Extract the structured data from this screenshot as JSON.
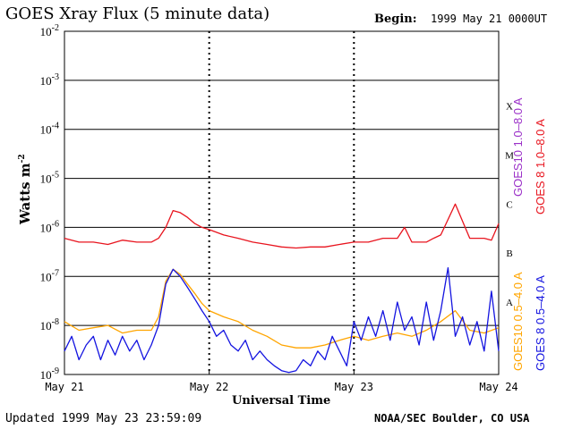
{
  "header": {
    "title": "GOES Xray Flux (5 minute data)",
    "begin_label": "Begin:",
    "begin_value": "1999 May 21 0000UT"
  },
  "footer": {
    "updated": "Updated 1999 May 23 23:59:09",
    "credit": "NOAA/SEC Boulder, CO USA"
  },
  "chart_data": {
    "type": "line",
    "title": "GOES Xray Flux (5 minute data)",
    "xlabel": "Universal Time",
    "ylabel": "Watts m",
    "ylabel_superscript": "-2",
    "y_scale": "log",
    "ylim": [
      1e-09,
      0.01
    ],
    "y_ticks": [
      {
        "base": "10",
        "exp": "-2",
        "value": 0.01
      },
      {
        "base": "10",
        "exp": "-3",
        "value": 0.001
      },
      {
        "base": "10",
        "exp": "-4",
        "value": 0.0001
      },
      {
        "base": "10",
        "exp": "-5",
        "value": 1e-05
      },
      {
        "base": "10",
        "exp": "-6",
        "value": 1e-06
      },
      {
        "base": "10",
        "exp": "-7",
        "value": 1e-07
      },
      {
        "base": "10",
        "exp": "-8",
        "value": 1e-08
      },
      {
        "base": "10",
        "exp": "-9",
        "value": 1e-09
      }
    ],
    "x_days": [
      0,
      1,
      2,
      3
    ],
    "x_ticks": [
      "May 21",
      "May 22",
      "May 23",
      "May 24"
    ],
    "flare_classes": [
      {
        "label": "X",
        "value": 0.0003
      },
      {
        "label": "M",
        "value": 3e-05
      },
      {
        "label": "C",
        "value": 3e-06
      },
      {
        "label": "B",
        "value": 3e-07
      },
      {
        "label": "A",
        "value": 3e-08
      }
    ],
    "grid": true,
    "legend": [
      {
        "name": "GOES10 1.0–8.0 A",
        "color": "#9b30c8"
      },
      {
        "name": "GOES 8 1.0–8.0 A",
        "color": "#e8141e"
      },
      {
        "name": "GOES10 0.5–4.0 A",
        "color": "#ffa500"
      },
      {
        "name": "GOES 8 0.5–4.0 A",
        "color": "#1414e0"
      }
    ],
    "series": [
      {
        "name": "GOES 8 1.0–8.0 A",
        "color": "#e8141e",
        "x": [
          0,
          0.1,
          0.2,
          0.3,
          0.4,
          0.5,
          0.6,
          0.65,
          0.7,
          0.75,
          0.8,
          0.85,
          0.9,
          0.95,
          1.0,
          1.1,
          1.2,
          1.3,
          1.4,
          1.5,
          1.6,
          1.7,
          1.8,
          1.9,
          2.0,
          2.1,
          2.2,
          2.3,
          2.35,
          2.4,
          2.5,
          2.55,
          2.6,
          2.7,
          2.8,
          2.9,
          2.95,
          3.0
        ],
        "y": [
          6e-07,
          5e-07,
          5e-07,
          4.5e-07,
          5.5e-07,
          5e-07,
          5e-07,
          6e-07,
          1e-06,
          2.2e-06,
          2e-06,
          1.6e-06,
          1.2e-06,
          1e-06,
          9e-07,
          7e-07,
          6e-07,
          5e-07,
          4.5e-07,
          4e-07,
          3.8e-07,
          4e-07,
          4e-07,
          4.5e-07,
          5e-07,
          5e-07,
          6e-07,
          6e-07,
          1e-06,
          5e-07,
          5e-07,
          6e-07,
          7e-07,
          3e-06,
          6e-07,
          6e-07,
          5.5e-07,
          1.2e-06
        ]
      },
      {
        "name": "GOES10 0.5–4.0 A",
        "color": "#ffa500",
        "x": [
          0,
          0.1,
          0.2,
          0.3,
          0.4,
          0.5,
          0.6,
          0.65,
          0.7,
          0.75,
          0.8,
          0.85,
          0.9,
          0.95,
          1.0,
          1.1,
          1.2,
          1.3,
          1.4,
          1.5,
          1.6,
          1.7,
          1.8,
          1.9,
          2.0,
          2.1,
          2.2,
          2.3,
          2.4,
          2.5,
          2.6,
          2.7,
          2.8,
          2.9,
          3.0
        ],
        "y": [
          1.2e-08,
          8e-09,
          9e-09,
          1e-08,
          7e-09,
          8e-09,
          8e-09,
          1.5e-08,
          8e-08,
          1.4e-07,
          1.1e-07,
          7e-08,
          4.5e-08,
          2.8e-08,
          2e-08,
          1.5e-08,
          1.2e-08,
          8e-09,
          6e-09,
          4e-09,
          3.5e-09,
          3.5e-09,
          4e-09,
          5e-09,
          6e-09,
          5e-09,
          6e-09,
          7e-09,
          6e-09,
          8e-09,
          1.2e-08,
          2e-08,
          8e-09,
          7e-09,
          9e-09
        ]
      },
      {
        "name": "GOES 8 0.5–4.0 A",
        "color": "#1414e0",
        "x": [
          0,
          0.05,
          0.1,
          0.15,
          0.2,
          0.25,
          0.3,
          0.35,
          0.4,
          0.45,
          0.5,
          0.55,
          0.6,
          0.65,
          0.7,
          0.75,
          0.8,
          0.85,
          0.9,
          0.95,
          1.0,
          1.05,
          1.1,
          1.15,
          1.2,
          1.25,
          1.3,
          1.35,
          1.4,
          1.45,
          1.5,
          1.55,
          1.6,
          1.65,
          1.7,
          1.75,
          1.8,
          1.85,
          1.9,
          1.95,
          2.0,
          2.05,
          2.1,
          2.15,
          2.2,
          2.25,
          2.3,
          2.35,
          2.4,
          2.45,
          2.5,
          2.55,
          2.6,
          2.65,
          2.7,
          2.75,
          2.8,
          2.85,
          2.9,
          2.95,
          3.0
        ],
        "y": [
          3e-09,
          6e-09,
          2e-09,
          4e-09,
          6e-09,
          2e-09,
          5e-09,
          2.5e-09,
          6e-09,
          3e-09,
          5e-09,
          2e-09,
          4e-09,
          1e-08,
          7e-08,
          1.4e-07,
          1e-07,
          6e-08,
          3.5e-08,
          2e-08,
          1.2e-08,
          6e-09,
          8e-09,
          4e-09,
          3e-09,
          5e-09,
          2e-09,
          3e-09,
          2e-09,
          1.5e-09,
          1.2e-09,
          1.1e-09,
          1.2e-09,
          2e-09,
          1.5e-09,
          3e-09,
          2e-09,
          6e-09,
          3e-09,
          1.5e-09,
          1.2e-08,
          5e-09,
          1.5e-08,
          6e-09,
          2e-08,
          5e-09,
          3e-08,
          8e-09,
          1.5e-08,
          4e-09,
          3e-08,
          5e-09,
          2e-08,
          1.5e-07,
          6e-09,
          1.5e-08,
          4e-09,
          1.2e-08,
          3e-09,
          5e-08,
          3e-09
        ]
      }
    ]
  }
}
